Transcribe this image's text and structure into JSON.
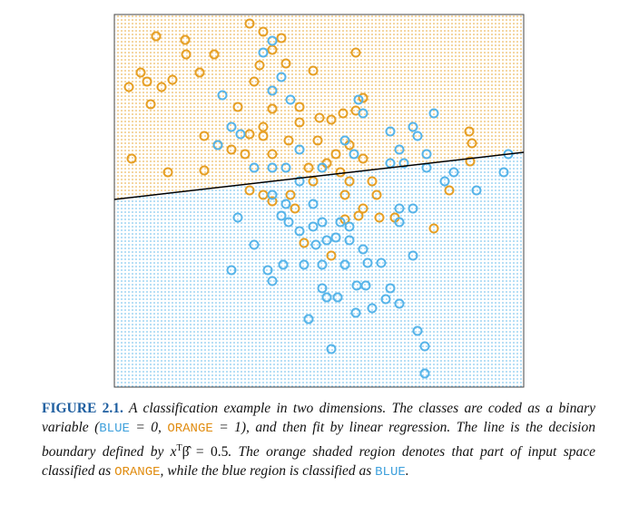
{
  "chart_data": {
    "type": "scatter",
    "xlim": [
      0,
      451
    ],
    "ylim": [
      0,
      411
    ],
    "boundary": {
      "color": "#000000",
      "x": [
        0,
        451
      ],
      "y": [
        207,
        259
      ]
    },
    "series": [
      {
        "color": "#e69f24",
        "x": [
          149,
          164,
          46,
          78,
          110,
          184,
          174,
          189,
          160,
          29,
          16,
          36,
          52,
          64,
          94,
          154,
          219,
          266,
          40,
          136,
          204,
          226,
          239,
          252,
          266,
          274,
          204,
          164,
          149,
          99,
          114,
          129,
          144,
          192,
          224,
          259,
          274,
          391,
          394,
          392,
          19,
          59,
          99,
          214,
          234,
          249,
          259,
          219,
          194,
          149,
          164,
          254,
          289,
          292,
          269,
          274,
          254,
          309,
          369,
          352,
          209,
          239,
          174,
          164,
          174,
          284,
          244,
          174,
          79,
          199
        ],
        "y": [
          401,
          392,
          387,
          383,
          367,
          385,
          372,
          357,
          355,
          347,
          331,
          337,
          331,
          339,
          347,
          337,
          349,
          369,
          312,
          309,
          309,
          297,
          295,
          302,
          305,
          319,
          292,
          287,
          279,
          277,
          267,
          262,
          257,
          272,
          272,
          267,
          252,
          282,
          269,
          249,
          252,
          237,
          239,
          242,
          247,
          237,
          227,
          227,
          212,
          217,
          212,
          212,
          212,
          187,
          189,
          197,
          185,
          187,
          217,
          175,
          159,
          145,
          205,
          277,
          257,
          227,
          257,
          307,
          367,
          197
        ]
      },
      {
        "color": "#56b4e9",
        "x": [
          174,
          164,
          119,
          129,
          174,
          184,
          194,
          269,
          274,
          304,
          329,
          334,
          352,
          139,
          114,
          154,
          174,
          189,
          204,
          229,
          254,
          264,
          314,
          319,
          344,
          364,
          399,
          434,
          429,
          174,
          189,
          192,
          204,
          219,
          229,
          249,
          259,
          234,
          244,
          259,
          274,
          279,
          314,
          329,
          314,
          136,
          154,
          129,
          169,
          186,
          209,
          229,
          254,
          294,
          329,
          174,
          229,
          234,
          246,
          267,
          277,
          304,
          299,
          314,
          284,
          266,
          214,
          334,
          342,
          239,
          342,
          204,
          219,
          344,
          304,
          374,
          222,
          184
        ],
        "y": [
          382,
          369,
          322,
          287,
          327,
          342,
          317,
          317,
          302,
          282,
          287,
          277,
          302,
          279,
          267,
          242,
          242,
          242,
          262,
          242,
          272,
          257,
          262,
          247,
          242,
          227,
          217,
          257,
          237,
          212,
          202,
          182,
          172,
          177,
          182,
          182,
          177,
          162,
          165,
          162,
          152,
          137,
          197,
          197,
          182,
          187,
          157,
          129,
          129,
          135,
          135,
          135,
          135,
          137,
          145,
          117,
          109,
          99,
          99,
          112,
          112,
          109,
          97,
          92,
          87,
          82,
          75,
          62,
          45,
          42,
          15,
          227,
          202,
          257,
          247,
          237,
          157,
          189
        ]
      }
    ]
  },
  "caption": {
    "label": "FIGURE 2.1.",
    "parts": [
      "A classification example in two dimensions. The classes are coded as a binary variable (",
      "BLUE",
      " = 0, ",
      "ORANGE",
      " = 1), and then fit by linear regression. The line is the decision boundary defined by ",
      "x",
      "T",
      "β̂ = 0.5",
      ". The orange shaded region denotes that part of input space classified as ",
      "ORANGE",
      ", while the blue region is classified as ",
      "BLUE",
      "."
    ]
  }
}
